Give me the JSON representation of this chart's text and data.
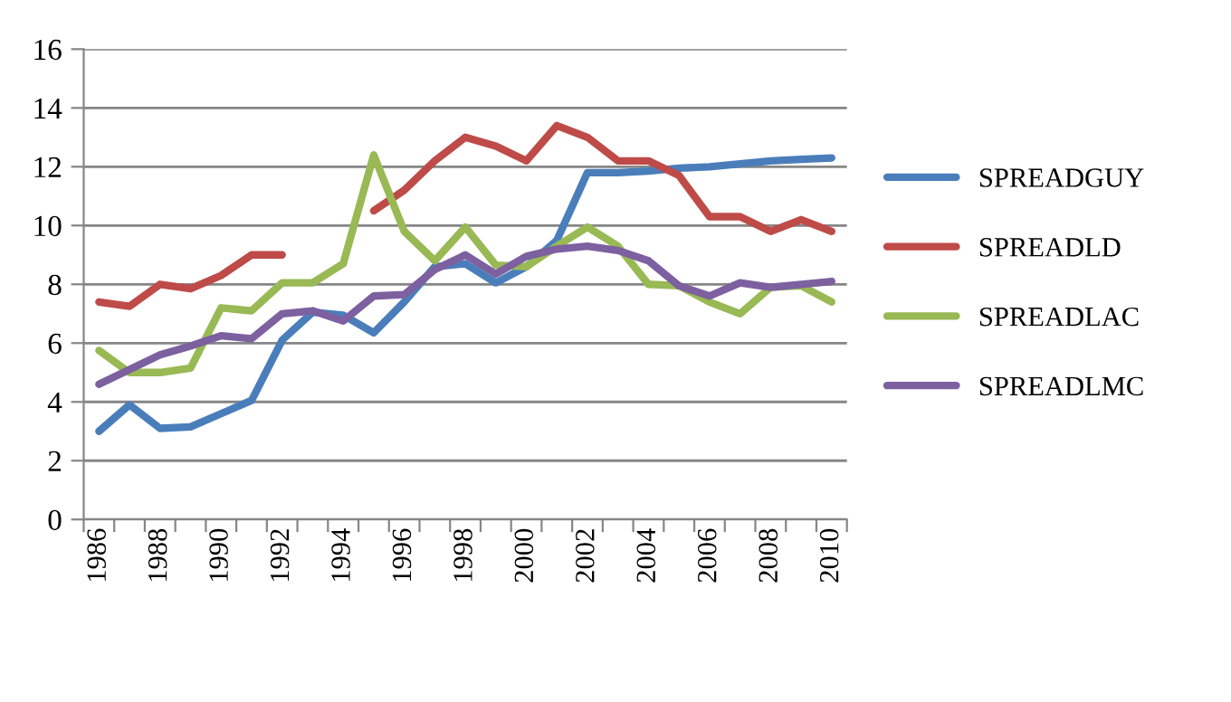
{
  "chart_data": {
    "type": "line",
    "categories": [
      "1986",
      null,
      "1988",
      null,
      "1990",
      null,
      "1992",
      null,
      "1994",
      null,
      "1996",
      null,
      "1998",
      null,
      "2000",
      null,
      "2002",
      null,
      "2004",
      null,
      "2006",
      null,
      "2008",
      null,
      "2010"
    ],
    "series": [
      {
        "name": "SPREADGUY",
        "color": "#4a7ebb",
        "values": [
          3.0,
          3.9,
          3.1,
          3.15,
          3.6,
          4.05,
          6.1,
          7.05,
          6.95,
          6.35,
          7.4,
          8.6,
          8.7,
          8.05,
          8.6,
          9.5,
          11.8,
          11.8,
          11.85,
          11.95,
          12.0,
          12.1,
          12.2,
          12.25,
          12.3
        ]
      },
      {
        "name": "SPREADLD",
        "color": "#be4b48",
        "values": [
          7.4,
          7.25,
          8.0,
          7.85,
          8.3,
          9.0,
          9.0,
          null,
          null,
          10.5,
          11.2,
          12.2,
          13.0,
          12.7,
          12.2,
          13.4,
          13.0,
          12.2,
          12.2,
          11.7,
          10.3,
          10.3,
          9.8,
          10.2,
          9.8
        ]
      },
      {
        "name": "SPREADLAC",
        "color": "#98b954",
        "values": [
          5.75,
          5.0,
          5.0,
          5.15,
          7.2,
          7.1,
          8.05,
          8.05,
          8.7,
          12.4,
          9.8,
          8.8,
          9.95,
          8.65,
          8.6,
          9.3,
          9.95,
          9.3,
          8.0,
          7.95,
          7.4,
          7.0,
          7.9,
          7.95,
          7.4
        ]
      },
      {
        "name": "SPREADLMC",
        "color": "#7d60a0",
        "values": [
          4.6,
          5.1,
          5.6,
          5.9,
          6.25,
          6.15,
          7.0,
          7.1,
          6.75,
          7.6,
          7.65,
          8.5,
          9.0,
          8.35,
          8.95,
          9.2,
          9.3,
          9.15,
          8.8,
          7.95,
          7.6,
          8.05,
          7.9,
          8.0,
          8.1
        ]
      }
    ],
    "ylim": [
      0,
      16
    ],
    "yticks": [
      0,
      2,
      4,
      6,
      8,
      10,
      12,
      14,
      16
    ],
    "grid": "y",
    "legend": "right",
    "marker": "none",
    "line_style": "solid"
  }
}
